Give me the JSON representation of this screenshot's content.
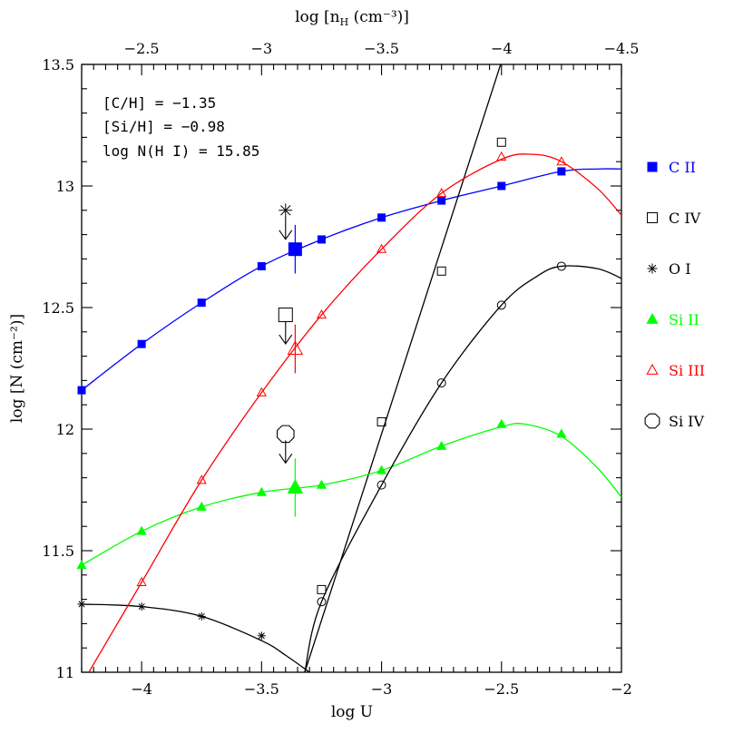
{
  "chart_data": {
    "type": "line",
    "title": "",
    "xlabel": "log U",
    "ylabel": "log [N (cm⁻²)]",
    "top_axis_label": "log [nH (cm⁻³)]",
    "xlim": [
      -4.25,
      -2.0
    ],
    "ylim": [
      11.0,
      13.5
    ],
    "top_xlim": [
      -2.25,
      -4.5
    ],
    "x_ticks": [
      -4,
      -3.5,
      -3,
      -2.5,
      -2
    ],
    "x_tick_labels": [
      "−4",
      "−3.5",
      "−3",
      "−2.5",
      "−2"
    ],
    "y_ticks": [
      11,
      11.5,
      12,
      12.5,
      13,
      13.5
    ],
    "y_tick_labels": [
      "11",
      "11.5",
      "12",
      "12.5",
      "13",
      "13.5"
    ],
    "top_ticks": [
      -2.5,
      -3,
      -3.5,
      -4,
      -4.5
    ],
    "top_tick_labels": [
      "−2.5",
      "−3",
      "−3.5",
      "−4",
      "−4.5"
    ],
    "annotations": [
      "[C/H] = −1.35",
      "[Si/H] = −0.98",
      "log N(H I) = 15.85"
    ],
    "grid": false,
    "legend_position": "right",
    "series": [
      {
        "name": "C II",
        "color": "#0000ff",
        "marker": "square-filled",
        "x": [
          -4.25,
          -4.0,
          -3.75,
          -3.5,
          -3.25,
          -3.0,
          -2.75,
          -2.5,
          -2.25
        ],
        "y": [
          12.16,
          12.35,
          12.52,
          12.67,
          12.78,
          12.87,
          12.94,
          13.0,
          13.06
        ],
        "curve_x": [
          -4.25,
          -4.0,
          -3.75,
          -3.5,
          -3.25,
          -3.0,
          -2.75,
          -2.5,
          -2.25,
          -2.1,
          -2.0
        ],
        "curve_y": [
          12.16,
          12.35,
          12.52,
          12.67,
          12.78,
          12.87,
          12.94,
          13.0,
          13.06,
          13.07,
          13.07
        ],
        "observed": {
          "x": -3.36,
          "y": 12.74,
          "err": 0.1
        }
      },
      {
        "name": "C IV",
        "color": "#000000",
        "marker": "square-open",
        "x": [
          -3.25,
          -3.0,
          -2.75,
          -2.5
        ],
        "y": [
          11.34,
          12.03,
          12.65,
          13.18
        ],
        "curve_x": [
          -3.32,
          -2.84
        ],
        "curve_y": [
          11.0,
          12.47
        ],
        "upper_limit": {
          "x": -3.4,
          "y": 12.47
        }
      },
      {
        "name": "O I",
        "color": "#000000",
        "marker": "asterisk",
        "x": [
          -4.25,
          -4.0,
          -3.75,
          -3.5
        ],
        "y": [
          11.28,
          11.27,
          11.23,
          11.15
        ],
        "curve_x": [
          -4.25,
          -4.0,
          -3.75,
          -3.5,
          -3.4,
          -3.3
        ],
        "curve_y": [
          11.28,
          11.27,
          11.23,
          11.13,
          11.07,
          11.0
        ],
        "upper_limit": {
          "x": -3.4,
          "y": 12.9
        }
      },
      {
        "name": "Si II",
        "color": "#00ff00",
        "marker": "triangle-filled",
        "x": [
          -4.25,
          -4.0,
          -3.75,
          -3.5,
          -3.25,
          -3.0,
          -2.75,
          -2.5,
          -2.25
        ],
        "y": [
          11.44,
          11.58,
          11.68,
          11.74,
          11.77,
          11.83,
          11.93,
          12.02,
          11.98
        ],
        "curve_x": [
          -4.25,
          -4.0,
          -3.75,
          -3.5,
          -3.25,
          -3.0,
          -2.75,
          -2.5,
          -2.4,
          -2.25,
          -2.1,
          -2.0
        ],
        "curve_y": [
          11.44,
          11.58,
          11.68,
          11.74,
          11.77,
          11.83,
          11.93,
          12.01,
          12.02,
          11.97,
          11.84,
          11.72
        ],
        "observed": {
          "x": -3.36,
          "y": 11.76,
          "err": 0.12
        }
      },
      {
        "name": "Si III",
        "color": "#ff0000",
        "marker": "triangle-open",
        "x": [
          -4.0,
          -3.75,
          -3.5,
          -3.25,
          -3.0,
          -2.75,
          -2.5,
          -2.25
        ],
        "y": [
          11.37,
          11.79,
          12.15,
          12.47,
          12.74,
          12.97,
          13.12,
          13.1
        ],
        "curve_x": [
          -4.22,
          -4.0,
          -3.75,
          -3.5,
          -3.25,
          -3.0,
          -2.75,
          -2.5,
          -2.37,
          -2.25,
          -2.1,
          -2.0
        ],
        "curve_y": [
          11.0,
          11.37,
          11.79,
          12.15,
          12.47,
          12.74,
          12.97,
          13.11,
          13.13,
          13.1,
          12.99,
          12.88
        ],
        "observed": {
          "x": -3.36,
          "y": 12.33,
          "err": 0.1
        }
      },
      {
        "name": "Si IV",
        "color": "#000000",
        "marker": "circle-open",
        "x": [
          -3.25,
          -3.0,
          -2.75,
          -2.5,
          -2.25
        ],
        "y": [
          11.29,
          11.77,
          12.19,
          12.51,
          12.67
        ],
        "curve_x": [
          -3.32,
          -3.25,
          -3.0,
          -2.75,
          -2.5,
          -2.35,
          -2.25,
          -2.1,
          -2.0
        ],
        "curve_y": [
          11.0,
          11.29,
          11.77,
          12.19,
          12.51,
          12.63,
          12.67,
          12.66,
          12.62
        ],
        "upper_limit": {
          "x": -3.4,
          "y": 11.98
        }
      }
    ]
  },
  "colors": {
    "axis": "#000000"
  }
}
